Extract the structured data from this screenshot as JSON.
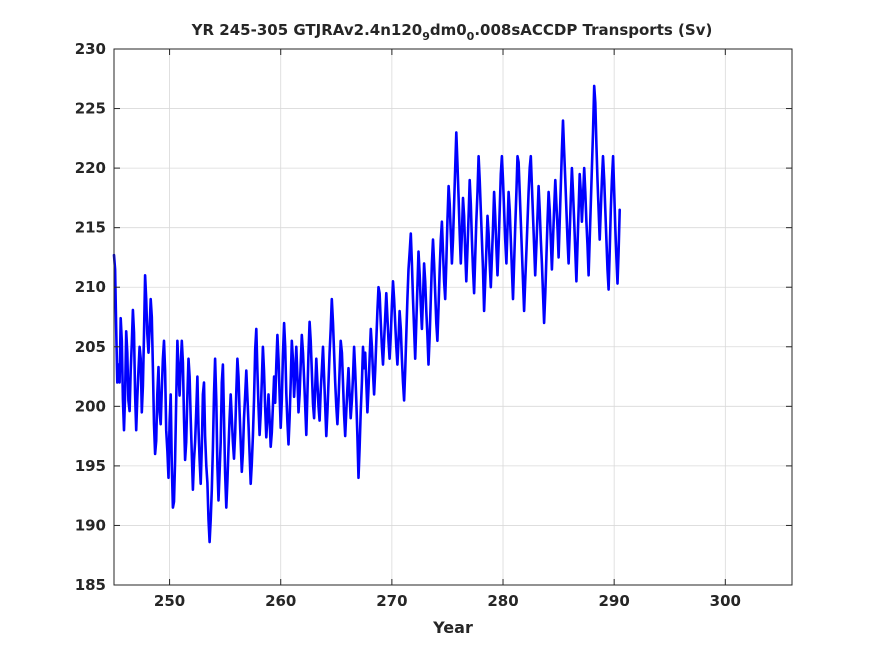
{
  "chart_data": {
    "type": "line",
    "title": "YR 245-305 GTJRAv2.4n120_9dm0_0.008sACCDP Transports (Sv)",
    "title_parts": [
      "YR 245-305 GTJRAv2.4n120",
      "9",
      "dm0",
      "0",
      ".008sACCDP Transports (Sv)"
    ],
    "xlabel": "Year",
    "ylabel": "",
    "xlim": [
      245,
      306
    ],
    "ylim": [
      185,
      230
    ],
    "xticks": [
      250,
      260,
      270,
      280,
      290,
      300
    ],
    "xtick_labels": [
      "250",
      "260",
      "270",
      "280",
      "290",
      "300"
    ],
    "yticks": [
      185,
      190,
      195,
      200,
      205,
      210,
      215,
      220,
      225,
      230
    ],
    "ytick_labels": [
      "185",
      "190",
      "195",
      "200",
      "205",
      "210",
      "215",
      "220",
      "225",
      "230"
    ],
    "grid": true,
    "series": [
      {
        "color": "#0000ff",
        "x_start": 245.0,
        "x_step": 0.1,
        "values": [
          212.7,
          211.5,
          206.5,
          202.0,
          203.5,
          202.0,
          207.4,
          205.5,
          200.6,
          198.0,
          201.0,
          206.3,
          204.5,
          200.5,
          199.6,
          203.0,
          205.3,
          208.1,
          206.2,
          201.0,
          198.0,
          200.7,
          203.1,
          205.0,
          204.0,
          199.5,
          201.7,
          206.0,
          211.0,
          209.0,
          206.1,
          204.5,
          206.5,
          209.0,
          207.5,
          203.2,
          198.5,
          196.0,
          197.1,
          201.0,
          203.3,
          199.5,
          198.5,
          201.4,
          204.0,
          205.5,
          203.0,
          198.0,
          196.2,
          194.0,
          198.7,
          201.0,
          195.0,
          191.5,
          192.0,
          195.5,
          200.5,
          205.5,
          203.0,
          200.9,
          203.4,
          205.5,
          203.7,
          199.0,
          195.5,
          197.0,
          201.0,
          204.0,
          202.5,
          199.0,
          196.0,
          193.0,
          195.5,
          197.0,
          199.5,
          202.5,
          198.2,
          195.5,
          193.5,
          196.5,
          201.0,
          202.0,
          197.5,
          195.0,
          193.6,
          190.5,
          188.6,
          190.5,
          193.0,
          196.5,
          201.0,
          204.0,
          200.5,
          195.0,
          192.1,
          194.5,
          197.0,
          202.0,
          203.5,
          199.0,
          194.4,
          191.5,
          193.7,
          196.5,
          199.0,
          201.0,
          199.0,
          197.0,
          195.6,
          197.8,
          201.2,
          204.0,
          202.5,
          199.5,
          197.0,
          194.5,
          196.1,
          199.0,
          201.0,
          203.0,
          200.8,
          198.5,
          196.0,
          193.5,
          195.2,
          197.5,
          200.5,
          204.8,
          206.5,
          203.0,
          200.0,
          197.6,
          199.4,
          202.1,
          205.0,
          203.0,
          199.8,
          197.4,
          199.1,
          201.0,
          198.9,
          196.6,
          197.8,
          200.0,
          202.5,
          200.3,
          203.5,
          206.0,
          204.0,
          201.0,
          198.2,
          200.5,
          204.2,
          207.0,
          205.0,
          201.1,
          198.7,
          196.8,
          199.0,
          202.0,
          205.5,
          204.0,
          200.8,
          202.7,
          205.0,
          202.5,
          199.5,
          201.0,
          203.5,
          206.0,
          204.5,
          202.3,
          200.0,
          197.6,
          201.0,
          204.5,
          207.1,
          205.5,
          203.0,
          200.2,
          199.0,
          201.5,
          204.0,
          202.0,
          200.0,
          198.8,
          201.3,
          203.0,
          205.0,
          202.5,
          200.0,
          197.5,
          199.5,
          202.0,
          204.5,
          206.5,
          209.0,
          207.0,
          204.5,
          202.0,
          200.0,
          198.5,
          200.5,
          203.0,
          205.5,
          204.5,
          202.0,
          199.3,
          197.5,
          199.6,
          201.5,
          203.2,
          201.0,
          199.0,
          200.5,
          202.5,
          205.0,
          203.0,
          200.5,
          197.5,
          194.0,
          196.5,
          199.5,
          202.0,
          205.0,
          203.2,
          204.5,
          202.0,
          199.5,
          201.5,
          204.0,
          206.5,
          205.0,
          202.8,
          201.0,
          203.0,
          205.5,
          208.0,
          210.0,
          209.5,
          207.0,
          205.0,
          203.5,
          205.5,
          207.5,
          209.5,
          207.5,
          205.5,
          204.0,
          206.0,
          208.5,
          210.5,
          209.0,
          207.0,
          205.0,
          203.5,
          205.5,
          208.0,
          206.5,
          204.0,
          202.0,
          200.5,
          203.0,
          206.0,
          209.0,
          211.5,
          213.0,
          214.5,
          212.0,
          209.0,
          206.5,
          204.0,
          207.0,
          210.0,
          213.0,
          211.0,
          208.5,
          206.5,
          209.0,
          212.0,
          210.5,
          208.0,
          206.0,
          203.5,
          206.0,
          209.0,
          212.0,
          214.0,
          212.0,
          209.5,
          207.0,
          205.5,
          208.5,
          211.5,
          214.0,
          215.5,
          213.0,
          210.5,
          209.0,
          212.0,
          215.5,
          218.5,
          217.0,
          214.5,
          212.0,
          214.0,
          217.0,
          220.0,
          223.0,
          220.5,
          217.5,
          214.5,
          212.0,
          214.5,
          217.5,
          216.0,
          213.0,
          210.5,
          213.0,
          216.0,
          219.0,
          217.0,
          214.0,
          211.5,
          209.5,
          212.5,
          215.5,
          218.0,
          221.0,
          219.0,
          216.5,
          214.0,
          211.5,
          208.0,
          210.5,
          213.0,
          216.0,
          214.5,
          212.0,
          210.0,
          212.5,
          215.0,
          218.0,
          216.0,
          213.5,
          211.0,
          213.5,
          216.5,
          219.5,
          221.0,
          219.0,
          216.5,
          214.0,
          212.0,
          215.0,
          218.0,
          216.5,
          214.0,
          211.5,
          209.0,
          212.0,
          215.0,
          218.0,
          221.0,
          220.5,
          218.0,
          215.5,
          213.0,
          210.5,
          208.0,
          210.5,
          213.0,
          215.5,
          218.0,
          220.0,
          221.0,
          218.5,
          216.0,
          213.5,
          211.0,
          213.5,
          216.0,
          218.5,
          216.5,
          214.0,
          212.0,
          209.5,
          207.0,
          209.5,
          212.5,
          215.5,
          218.0,
          216.5,
          214.0,
          211.5,
          214.0,
          216.5,
          219.0,
          217.0,
          215.0,
          212.5,
          215.5,
          218.5,
          221.5,
          224.0,
          221.5,
          219.0,
          216.5,
          214.0,
          212.0,
          214.5,
          217.5,
          220.0,
          218.0,
          215.5,
          213.0,
          210.5,
          213.5,
          216.5,
          219.5,
          218.0,
          215.5,
          217.5,
          220.0,
          218.0,
          215.5,
          213.5,
          211.0,
          214.0,
          217.0,
          220.0,
          223.0,
          226.9,
          225.5,
          222.0,
          219.0,
          216.5,
          214.0,
          216.5,
          219.0,
          221.0,
          219.0,
          216.5,
          214.0,
          211.5,
          209.8,
          213.0,
          216.5,
          219.0,
          221.0,
          218.0,
          215.0,
          212.5,
          210.3,
          213.0,
          216.5
        ]
      }
    ]
  }
}
